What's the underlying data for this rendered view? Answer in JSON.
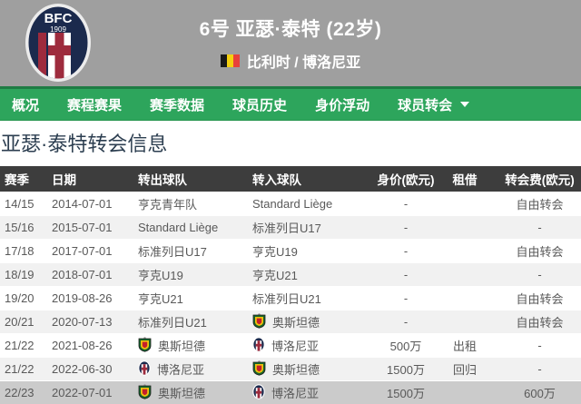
{
  "header": {
    "title": "6号 亚瑟·泰特 (22岁)",
    "subtitle": "比利时 / 博洛尼亚",
    "crest": {
      "club": "博洛尼亚",
      "top_text": "BFC",
      "year_text": "1909"
    },
    "flag": "belgium-flag"
  },
  "nav": {
    "tabs": [
      {
        "label": "概况",
        "has_dropdown": false
      },
      {
        "label": "赛程赛果",
        "has_dropdown": false
      },
      {
        "label": "赛季数据",
        "has_dropdown": false
      },
      {
        "label": "球员历史",
        "has_dropdown": false
      },
      {
        "label": "身价浮动",
        "has_dropdown": false
      },
      {
        "label": "球员转会",
        "has_dropdown": true
      }
    ]
  },
  "section": {
    "title": "亚瑟·泰特转会信息"
  },
  "table": {
    "columns": [
      "赛季",
      "日期",
      "转出球队",
      "转入球队",
      "身价(欧元)",
      "租借",
      "转会费(欧元)"
    ],
    "rows": [
      {
        "season": "14/15",
        "date": "2014-07-01",
        "from": {
          "badge": null,
          "name": "亨克青年队"
        },
        "to": {
          "badge": null,
          "name": "Standard Liège"
        },
        "value": "-",
        "loan": "",
        "fee": "自由转会",
        "highlighted": false
      },
      {
        "season": "15/16",
        "date": "2015-07-01",
        "from": {
          "badge": null,
          "name": "Standard Liège"
        },
        "to": {
          "badge": null,
          "name": "标准列日U17"
        },
        "value": "-",
        "loan": "",
        "fee": "-",
        "highlighted": false
      },
      {
        "season": "17/18",
        "date": "2017-07-01",
        "from": {
          "badge": null,
          "name": "标准列日U17"
        },
        "to": {
          "badge": null,
          "name": "亨克U19"
        },
        "value": "-",
        "loan": "",
        "fee": "自由转会",
        "highlighted": false
      },
      {
        "season": "18/19",
        "date": "2018-07-01",
        "from": {
          "badge": null,
          "name": "亨克U19"
        },
        "to": {
          "badge": null,
          "name": "亨克U21"
        },
        "value": "-",
        "loan": "",
        "fee": "-",
        "highlighted": false
      },
      {
        "season": "19/20",
        "date": "2019-08-26",
        "from": {
          "badge": null,
          "name": "亨克U21"
        },
        "to": {
          "badge": null,
          "name": "标准列日U21"
        },
        "value": "-",
        "loan": "",
        "fee": "自由转会",
        "highlighted": false
      },
      {
        "season": "20/21",
        "date": "2020-07-13",
        "from": {
          "badge": null,
          "name": "标准列日U21"
        },
        "to": {
          "badge": "oostende",
          "name": "奥斯坦德"
        },
        "value": "-",
        "loan": "",
        "fee": "自由转会",
        "highlighted": false
      },
      {
        "season": "21/22",
        "date": "2021-08-26",
        "from": {
          "badge": "oostende",
          "name": "奥斯坦德"
        },
        "to": {
          "badge": "bologna",
          "name": "博洛尼亚"
        },
        "value": "500万",
        "loan": "出租",
        "fee": "-",
        "highlighted": false
      },
      {
        "season": "21/22",
        "date": "2022-06-30",
        "from": {
          "badge": "bologna",
          "name": "博洛尼亚"
        },
        "to": {
          "badge": "oostende",
          "name": "奥斯坦德"
        },
        "value": "1500万",
        "loan": "回归",
        "fee": "-",
        "highlighted": false
      },
      {
        "season": "22/23",
        "date": "2022-07-01",
        "from": {
          "badge": "oostende",
          "name": "奥斯坦德"
        },
        "to": {
          "badge": "bologna",
          "name": "博洛尼亚"
        },
        "value": "1500万",
        "loan": "",
        "fee": "600万",
        "highlighted": true
      }
    ]
  },
  "colors": {
    "header_gray": "#9f9f9f",
    "nav_green": "#2da55c",
    "nav_green_dark": "#1e7c44",
    "table_header_bg": "#3d3d3d",
    "row_alt_bg": "#f1f1f1",
    "row_highlight_bg": "#cbcbcb",
    "section_title_color": "#2c3e50",
    "bologna_navy": "#1b2a4d",
    "bologna_red": "#9e2b3d",
    "oostende_green": "#17642a",
    "oostende_yellow": "#eec20c",
    "oostende_red": "#c41f2b",
    "belgium_flag_colors": [
      "#1a1a1a",
      "#f5d010",
      "#e8413a"
    ]
  }
}
